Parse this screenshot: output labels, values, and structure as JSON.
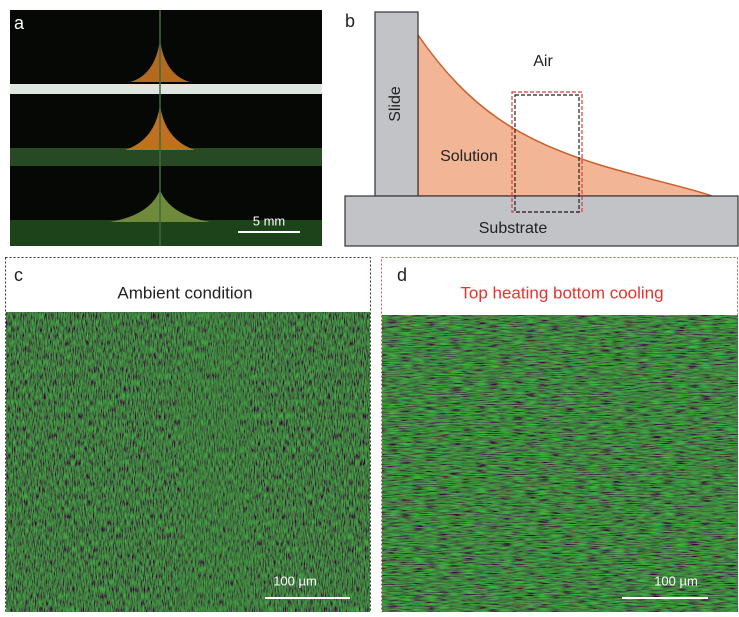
{
  "panels": {
    "a": {
      "label": "a",
      "scale_bar": "5 mm"
    },
    "b": {
      "label": "b",
      "slide": "Slide",
      "air": "Air",
      "solution": "Solution",
      "substrate": "Substrate"
    },
    "c": {
      "label": "c",
      "title": "Ambient condition",
      "scale_bar": "100 µm"
    },
    "d": {
      "label": "d",
      "title": "Top heating bottom cooling",
      "scale_bar": "100 µm"
    }
  }
}
